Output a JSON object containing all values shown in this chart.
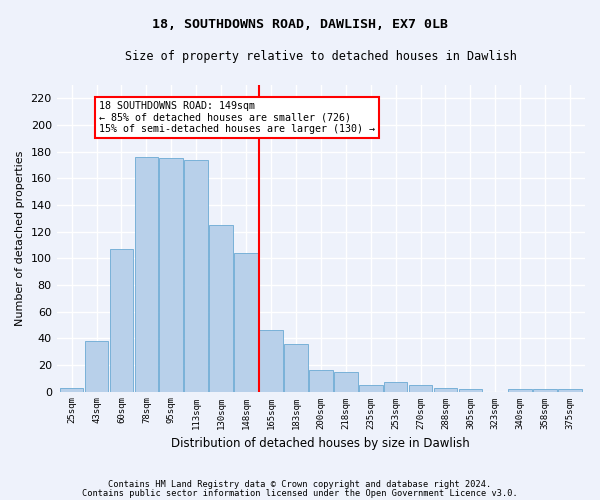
{
  "title1": "18, SOUTHDOWNS ROAD, DAWLISH, EX7 0LB",
  "title2": "Size of property relative to detached houses in Dawlish",
  "xlabel": "Distribution of detached houses by size in Dawlish",
  "ylabel": "Number of detached properties",
  "categories": [
    "25sqm",
    "43sqm",
    "60sqm",
    "78sqm",
    "95sqm",
    "113sqm",
    "130sqm",
    "148sqm",
    "165sqm",
    "183sqm",
    "200sqm",
    "218sqm",
    "235sqm",
    "253sqm",
    "270sqm",
    "288sqm",
    "305sqm",
    "323sqm",
    "340sqm",
    "358sqm",
    "375sqm"
  ],
  "values": [
    3,
    38,
    107,
    176,
    175,
    174,
    125,
    104,
    46,
    36,
    16,
    15,
    5,
    7,
    5,
    3,
    2,
    0,
    2,
    2,
    2
  ],
  "bar_color": "#b8d0ea",
  "bar_edge_color": "#6aaad4",
  "vline_x": 7.5,
  "annotation_text": "18 SOUTHDOWNS ROAD: 149sqm\n← 85% of detached houses are smaller (726)\n15% of semi-detached houses are larger (130) →",
  "annotation_box_color": "white",
  "annotation_box_edge_color": "red",
  "vline_color": "red",
  "ylim": [
    0,
    230
  ],
  "yticks": [
    0,
    20,
    40,
    60,
    80,
    100,
    120,
    140,
    160,
    180,
    200,
    220
  ],
  "footnote1": "Contains HM Land Registry data © Crown copyright and database right 2024.",
  "footnote2": "Contains public sector information licensed under the Open Government Licence v3.0.",
  "bg_color": "#eef2fb",
  "grid_color": "white"
}
